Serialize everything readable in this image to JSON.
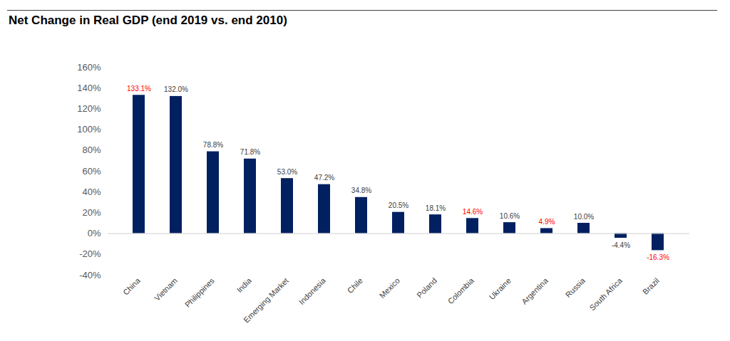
{
  "chart_data": {
    "type": "bar",
    "title": "Net Change in Real GDP (end 2019 vs. end 2010)",
    "categories": [
      "China",
      "Vietnam",
      "Philippines",
      "India",
      "Emerging Market",
      "Indonesia",
      "Chile",
      "Mexico",
      "Poland",
      "Colombia",
      "Ukraine",
      "Argentina",
      "Russia",
      "South Africa",
      "Brazil"
    ],
    "values": [
      133.1,
      132.0,
      78.8,
      71.8,
      53.0,
      47.2,
      34.8,
      20.5,
      18.1,
      14.6,
      10.6,
      4.9,
      10.0,
      -4.4,
      -16.3
    ],
    "value_labels": [
      "133.1%",
      "132.0%",
      "78.8%",
      "71.8%",
      "53.0%",
      "47.2%",
      "34.8%",
      "20.5%",
      "18.1%",
      "14.6%",
      "10.6%",
      "4.9%",
      "10.0%",
      "-4.4%",
      "-16.3%"
    ],
    "color": "#002060",
    "ylim": [
      -40,
      160
    ],
    "yticks": [
      {
        "value": -40,
        "label": "-40%"
      },
      {
        "value": -20,
        "label": "-20%"
      },
      {
        "value": 0,
        "label": "0%"
      },
      {
        "value": 20,
        "label": "20%"
      },
      {
        "value": 40,
        "label": "40%"
      },
      {
        "value": 60,
        "label": "60%"
      },
      {
        "value": 80,
        "label": "80%"
      },
      {
        "value": 100,
        "label": "100%"
      },
      {
        "value": 120,
        "label": "120%"
      },
      {
        "value": 140,
        "label": "140%"
      },
      {
        "value": 160,
        "label": "160%"
      }
    ],
    "grid": false,
    "data_labels": true
  }
}
